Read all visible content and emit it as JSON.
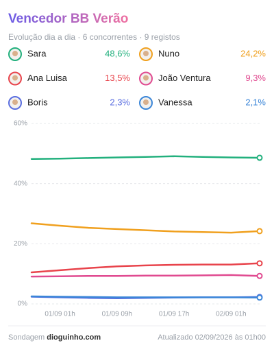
{
  "chart_data": {
    "type": "line",
    "title": "Vencedor BB Verão",
    "subtitle": "Evolução dia a dia · 6 concorrentes · 9 registos",
    "categories": [
      null,
      "01/09 01h",
      null,
      "01/09 09h",
      null,
      "01/09 17h",
      null,
      "02/09 01h",
      null
    ],
    "ylim": [
      0,
      60
    ],
    "yticks": [
      {
        "value": 0,
        "label": "0%"
      },
      {
        "value": 20,
        "label": "20%"
      },
      {
        "value": 40,
        "label": "40%"
      },
      {
        "value": 60,
        "label": "60%"
      }
    ],
    "grid": true,
    "series": [
      {
        "name": "Sara",
        "color": "#22b07d",
        "values": [
          48.2,
          48.3,
          48.5,
          48.7,
          48.9,
          49.1,
          48.9,
          48.7,
          48.6
        ],
        "value_labels": [
          null,
          null,
          null,
          null,
          null,
          null,
          null,
          null,
          "48,6%"
        ]
      },
      {
        "name": "Nuno",
        "color": "#f0a01e",
        "values": [
          26.8,
          26.0,
          25.3,
          24.9,
          24.5,
          24.1,
          23.9,
          23.7,
          24.2
        ],
        "value_labels": [
          null,
          null,
          null,
          null,
          null,
          null,
          null,
          null,
          "24,2%"
        ]
      },
      {
        "name": "Ana Luisa",
        "color": "#e8434b",
        "values": [
          10.5,
          11.2,
          11.9,
          12.5,
          12.8,
          13.0,
          13.1,
          13.1,
          13.5
        ],
        "value_labels": [
          null,
          null,
          null,
          null,
          null,
          null,
          null,
          null,
          "13,5%"
        ]
      },
      {
        "name": "João Ventura",
        "color": "#e04a90",
        "values": [
          9.1,
          9.2,
          9.3,
          9.3,
          9.4,
          9.4,
          9.5,
          9.6,
          9.3
        ],
        "value_labels": [
          null,
          null,
          null,
          null,
          null,
          null,
          null,
          null,
          "9,3%"
        ]
      },
      {
        "name": "Boris",
        "color": "#5a6ee0",
        "values": [
          2.4,
          2.2,
          2.0,
          1.9,
          2.0,
          2.1,
          2.2,
          2.2,
          2.3
        ],
        "value_labels": [
          null,
          null,
          null,
          null,
          null,
          null,
          null,
          null,
          "2,3%"
        ]
      },
      {
        "name": "Vanessa",
        "color": "#3b86d8",
        "values": [
          2.5,
          2.4,
          2.3,
          2.2,
          2.2,
          2.2,
          2.2,
          2.2,
          2.1
        ],
        "value_labels": [
          null,
          null,
          null,
          null,
          null,
          null,
          null,
          null,
          "2,1%"
        ]
      }
    ],
    "footer_source_prefix": "Sondagem",
    "footer_source": "dioguinho.com",
    "footer_updated": "Atualizado 02/09/2026 às 01h00"
  }
}
